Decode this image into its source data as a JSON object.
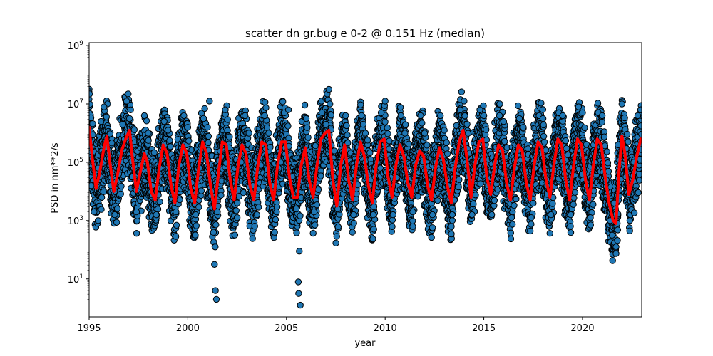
{
  "chart_data": {
    "type": "scatter",
    "title": "scatter dn gr.bug e 0-2 @ 0.151 Hz (median)",
    "xlabel": "year",
    "ylabel": "PSD in nm**2/s",
    "xlim": [
      1995,
      2023
    ],
    "ylim_log10": [
      -0.3,
      9.1
    ],
    "y_scale": "log",
    "x_ticks": [
      1995,
      2000,
      2005,
      2010,
      2015,
      2020
    ],
    "y_ticks": [
      {
        "base": "10",
        "exp": "1",
        "log10": 1
      },
      {
        "base": "10",
        "exp": "3",
        "log10": 3
      },
      {
        "base": "10",
        "exp": "5",
        "log10": 5
      },
      {
        "base": "10",
        "exp": "7",
        "log10": 7
      },
      {
        "base": "10",
        "exp": "9",
        "log10": 9
      }
    ],
    "grid": false,
    "series": [
      {
        "kind": "scatter",
        "color": "#1f77b4",
        "edgecolor": "#000000",
        "description_points_log10": [
          [
            1995.0,
            5.8
          ],
          [
            1995.1,
            4.2
          ],
          [
            1995.25,
            3.3
          ],
          [
            1995.45,
            4.8
          ],
          [
            1995.6,
            6.4
          ],
          [
            1995.75,
            6.9
          ],
          [
            1995.9,
            5.5
          ],
          [
            1996.1,
            4.2
          ],
          [
            1996.3,
            3.2
          ],
          [
            1996.5,
            4.6
          ],
          [
            1996.7,
            6.3
          ],
          [
            1996.9,
            7.1
          ],
          [
            1997.05,
            6.5
          ],
          [
            1997.2,
            4.5
          ],
          [
            1997.4,
            3.3
          ],
          [
            1997.6,
            4.9
          ],
          [
            1997.8,
            6.6
          ],
          [
            1998.0,
            6.0
          ],
          [
            1998.2,
            4.2
          ],
          [
            1998.4,
            3.2
          ],
          [
            1998.6,
            4.8
          ],
          [
            1998.8,
            6.4
          ],
          [
            1999.0,
            6.1
          ],
          [
            1999.2,
            4.4
          ],
          [
            1999.4,
            3.3
          ],
          [
            1999.6,
            4.9
          ],
          [
            1999.8,
            6.6
          ],
          [
            2000.0,
            6.2
          ],
          [
            2000.2,
            4.3
          ],
          [
            2000.4,
            3.2
          ],
          [
            2000.6,
            4.8
          ],
          [
            2000.8,
            6.5
          ],
          [
            2001.0,
            6.2
          ],
          [
            2001.1,
            7.1
          ],
          [
            2001.2,
            4.0
          ],
          [
            2001.3,
            2.6
          ],
          [
            2001.35,
            1.5
          ],
          [
            2001.4,
            0.6
          ],
          [
            2001.45,
            0.3
          ],
          [
            2001.5,
            3.3
          ],
          [
            2001.7,
            5.2
          ],
          [
            2001.9,
            6.8
          ],
          [
            2002.1,
            5.5
          ],
          [
            2002.3,
            3.8
          ],
          [
            2002.5,
            3.1
          ],
          [
            2002.7,
            5.0
          ],
          [
            2002.9,
            6.6
          ],
          [
            2003.1,
            6.0
          ],
          [
            2003.3,
            4.2
          ],
          [
            2003.5,
            3.2
          ],
          [
            2003.7,
            4.9
          ],
          [
            2003.9,
            6.6
          ],
          [
            2004.1,
            6.0
          ],
          [
            2004.3,
            4.2
          ],
          [
            2004.4,
            2.6
          ],
          [
            2004.5,
            3.3
          ],
          [
            2004.7,
            5.0
          ],
          [
            2004.9,
            6.7
          ],
          [
            2005.1,
            6.8
          ],
          [
            2005.3,
            4.5
          ],
          [
            2005.5,
            3.4
          ],
          [
            2005.6,
            0.9
          ],
          [
            2005.62,
            0.5
          ],
          [
            2005.65,
            1.95
          ],
          [
            2005.7,
            0.1
          ],
          [
            2005.8,
            5.0
          ],
          [
            2006.0,
            6.5
          ],
          [
            2006.2,
            4.2
          ],
          [
            2006.4,
            3.3
          ],
          [
            2006.6,
            5.0
          ],
          [
            2006.8,
            6.7
          ],
          [
            2007.0,
            6.3
          ],
          [
            2007.2,
            7.0
          ],
          [
            2007.4,
            4.5
          ],
          [
            2007.6,
            3.4
          ],
          [
            2007.8,
            5.0
          ],
          [
            2008.0,
            6.6
          ],
          [
            2008.2,
            4.2
          ],
          [
            2008.4,
            3.2
          ],
          [
            2008.6,
            5.0
          ],
          [
            2008.8,
            6.6
          ],
          [
            2009.0,
            6.0
          ],
          [
            2009.2,
            4.2
          ],
          [
            2009.4,
            3.2
          ],
          [
            2009.6,
            5.0
          ],
          [
            2009.8,
            6.7
          ],
          [
            2010.0,
            7.1
          ],
          [
            2010.2,
            4.3
          ],
          [
            2010.4,
            3.2
          ],
          [
            2010.6,
            5.0
          ],
          [
            2010.8,
            6.6
          ],
          [
            2011.0,
            6.0
          ],
          [
            2011.2,
            4.2
          ],
          [
            2011.4,
            3.3
          ],
          [
            2011.6,
            5.0
          ],
          [
            2011.8,
            6.6
          ],
          [
            2012.0,
            6.0
          ],
          [
            2012.2,
            4.2
          ],
          [
            2012.4,
            3.2
          ],
          [
            2012.6,
            5.0
          ],
          [
            2012.8,
            6.6
          ],
          [
            2013.0,
            6.1
          ],
          [
            2013.2,
            4.2
          ],
          [
            2013.4,
            3.2
          ],
          [
            2013.6,
            5.0
          ],
          [
            2013.8,
            6.8
          ],
          [
            2014.0,
            7.1
          ],
          [
            2014.2,
            4.5
          ],
          [
            2014.4,
            3.2
          ],
          [
            2014.6,
            5.0
          ],
          [
            2014.8,
            6.8
          ],
          [
            2015.0,
            6.6
          ],
          [
            2015.2,
            4.2
          ],
          [
            2015.4,
            3.2
          ],
          [
            2015.6,
            5.0
          ],
          [
            2015.8,
            6.6
          ],
          [
            2016.0,
            6.4
          ],
          [
            2016.2,
            4.2
          ],
          [
            2016.4,
            3.1
          ],
          [
            2016.6,
            4.8
          ],
          [
            2016.8,
            6.5
          ],
          [
            2017.0,
            6.2
          ],
          [
            2017.2,
            4.2
          ],
          [
            2017.4,
            3.1
          ],
          [
            2017.6,
            4.8
          ],
          [
            2017.8,
            6.6
          ],
          [
            2018.0,
            6.5
          ],
          [
            2018.2,
            4.2
          ],
          [
            2018.4,
            3.2
          ],
          [
            2018.6,
            5.0
          ],
          [
            2018.8,
            6.7
          ],
          [
            2019.0,
            6.6
          ],
          [
            2019.2,
            4.2
          ],
          [
            2019.4,
            3.2
          ],
          [
            2019.6,
            5.0
          ],
          [
            2019.8,
            6.9
          ],
          [
            2020.0,
            6.7
          ],
          [
            2020.2,
            4.2
          ],
          [
            2020.4,
            3.1
          ],
          [
            2020.6,
            5.0
          ],
          [
            2020.8,
            6.7
          ],
          [
            2021.0,
            6.6
          ],
          [
            2021.2,
            4.4
          ],
          [
            2021.4,
            3.0
          ],
          [
            2021.5,
            2.5
          ],
          [
            2021.6,
            3.6
          ],
          [
            2021.7,
            2.1
          ],
          [
            2021.8,
            5.6
          ],
          [
            2022.0,
            7.0
          ],
          [
            2022.2,
            4.5
          ],
          [
            2022.4,
            3.0
          ],
          [
            2022.6,
            5.0
          ],
          [
            2022.8,
            6.6
          ],
          [
            2022.95,
            6.8
          ]
        ]
      },
      {
        "kind": "line",
        "color": "#ff0000",
        "linewidth": 4,
        "points_log10": [
          [
            1995.0,
            6.2
          ],
          [
            1995.15,
            5.2
          ],
          [
            1995.35,
            4.1
          ],
          [
            1995.55,
            4.7
          ],
          [
            1995.75,
            5.5
          ],
          [
            1995.9,
            5.9
          ],
          [
            1996.05,
            5.0
          ],
          [
            1996.25,
            4.0
          ],
          [
            1996.45,
            4.6
          ],
          [
            1996.65,
            5.4
          ],
          [
            1996.85,
            5.8
          ],
          [
            1997.05,
            6.1
          ],
          [
            1997.2,
            5.1
          ],
          [
            1997.4,
            4.0
          ],
          [
            1997.6,
            4.7
          ],
          [
            1997.8,
            5.3
          ],
          [
            1997.95,
            5.0
          ],
          [
            1998.15,
            4.0
          ],
          [
            1998.35,
            3.7
          ],
          [
            1998.55,
            4.8
          ],
          [
            1998.75,
            5.6
          ],
          [
            1998.95,
            5.3
          ],
          [
            1999.15,
            4.2
          ],
          [
            1999.35,
            3.6
          ],
          [
            1999.55,
            4.9
          ],
          [
            1999.75,
            5.6
          ],
          [
            1999.95,
            5.3
          ],
          [
            2000.15,
            4.1
          ],
          [
            2000.35,
            3.6
          ],
          [
            2000.55,
            4.8
          ],
          [
            2000.75,
            5.7
          ],
          [
            2000.95,
            5.3
          ],
          [
            2001.15,
            4.2
          ],
          [
            2001.35,
            3.4
          ],
          [
            2001.55,
            4.6
          ],
          [
            2001.75,
            5.7
          ],
          [
            2001.95,
            5.6
          ],
          [
            2002.15,
            4.4
          ],
          [
            2002.35,
            3.7
          ],
          [
            2002.55,
            4.9
          ],
          [
            2002.75,
            5.6
          ],
          [
            2002.95,
            5.3
          ],
          [
            2003.15,
            4.2
          ],
          [
            2003.35,
            3.7
          ],
          [
            2003.55,
            4.9
          ],
          [
            2003.75,
            5.7
          ],
          [
            2003.95,
            5.6
          ],
          [
            2004.15,
            4.3
          ],
          [
            2004.35,
            3.7
          ],
          [
            2004.55,
            4.9
          ],
          [
            2004.75,
            5.7
          ],
          [
            2004.95,
            5.7
          ],
          [
            2005.15,
            4.5
          ],
          [
            2005.35,
            3.8
          ],
          [
            2005.55,
            3.8
          ],
          [
            2005.75,
            4.9
          ],
          [
            2005.95,
            5.5
          ],
          [
            2006.15,
            4.4
          ],
          [
            2006.35,
            3.8
          ],
          [
            2006.55,
            4.9
          ],
          [
            2006.75,
            5.8
          ],
          [
            2006.95,
            6.0
          ],
          [
            2007.15,
            6.1
          ],
          [
            2007.35,
            4.4
          ],
          [
            2007.55,
            3.5
          ],
          [
            2007.75,
            4.9
          ],
          [
            2007.95,
            5.6
          ],
          [
            2008.15,
            4.4
          ],
          [
            2008.35,
            3.7
          ],
          [
            2008.55,
            4.9
          ],
          [
            2008.75,
            5.7
          ],
          [
            2008.95,
            5.2
          ],
          [
            2009.15,
            4.2
          ],
          [
            2009.35,
            3.6
          ],
          [
            2009.55,
            4.9
          ],
          [
            2009.75,
            5.7
          ],
          [
            2009.95,
            5.8
          ],
          [
            2010.15,
            4.5
          ],
          [
            2010.35,
            3.8
          ],
          [
            2010.55,
            4.9
          ],
          [
            2010.75,
            5.6
          ],
          [
            2010.95,
            5.2
          ],
          [
            2011.15,
            4.3
          ],
          [
            2011.35,
            3.8
          ],
          [
            2011.55,
            4.9
          ],
          [
            2011.75,
            5.4
          ],
          [
            2011.95,
            5.2
          ],
          [
            2012.15,
            4.2
          ],
          [
            2012.35,
            3.7
          ],
          [
            2012.55,
            4.8
          ],
          [
            2012.75,
            5.5
          ],
          [
            2012.95,
            5.1
          ],
          [
            2013.15,
            4.2
          ],
          [
            2013.35,
            3.6
          ],
          [
            2013.55,
            4.8
          ],
          [
            2013.75,
            5.7
          ],
          [
            2013.95,
            6.1
          ],
          [
            2014.15,
            5.1
          ],
          [
            2014.35,
            3.8
          ],
          [
            2014.55,
            4.9
          ],
          [
            2014.75,
            5.7
          ],
          [
            2014.95,
            5.8
          ],
          [
            2015.15,
            4.5
          ],
          [
            2015.35,
            3.9
          ],
          [
            2015.55,
            4.9
          ],
          [
            2015.75,
            5.6
          ],
          [
            2015.95,
            5.4
          ],
          [
            2016.15,
            4.3
          ],
          [
            2016.35,
            3.7
          ],
          [
            2016.55,
            4.8
          ],
          [
            2016.75,
            5.6
          ],
          [
            2016.95,
            5.4
          ],
          [
            2017.15,
            4.3
          ],
          [
            2017.35,
            3.7
          ],
          [
            2017.55,
            4.9
          ],
          [
            2017.75,
            5.7
          ],
          [
            2017.95,
            5.5
          ],
          [
            2018.15,
            4.4
          ],
          [
            2018.35,
            3.8
          ],
          [
            2018.55,
            4.9
          ],
          [
            2018.75,
            5.8
          ],
          [
            2018.95,
            5.6
          ],
          [
            2019.15,
            4.4
          ],
          [
            2019.35,
            3.7
          ],
          [
            2019.55,
            4.9
          ],
          [
            2019.75,
            5.8
          ],
          [
            2019.95,
            5.6
          ],
          [
            2020.15,
            4.4
          ],
          [
            2020.35,
            3.7
          ],
          [
            2020.55,
            4.9
          ],
          [
            2020.75,
            5.8
          ],
          [
            2020.95,
            5.6
          ],
          [
            2021.15,
            4.5
          ],
          [
            2021.35,
            3.6
          ],
          [
            2021.55,
            3.0
          ],
          [
            2021.7,
            2.9
          ],
          [
            2021.85,
            4.7
          ],
          [
            2022.0,
            5.9
          ],
          [
            2022.15,
            5.3
          ],
          [
            2022.35,
            3.9
          ],
          [
            2022.55,
            4.4
          ],
          [
            2022.75,
            5.2
          ],
          [
            2022.95,
            5.8
          ]
        ]
      }
    ]
  }
}
